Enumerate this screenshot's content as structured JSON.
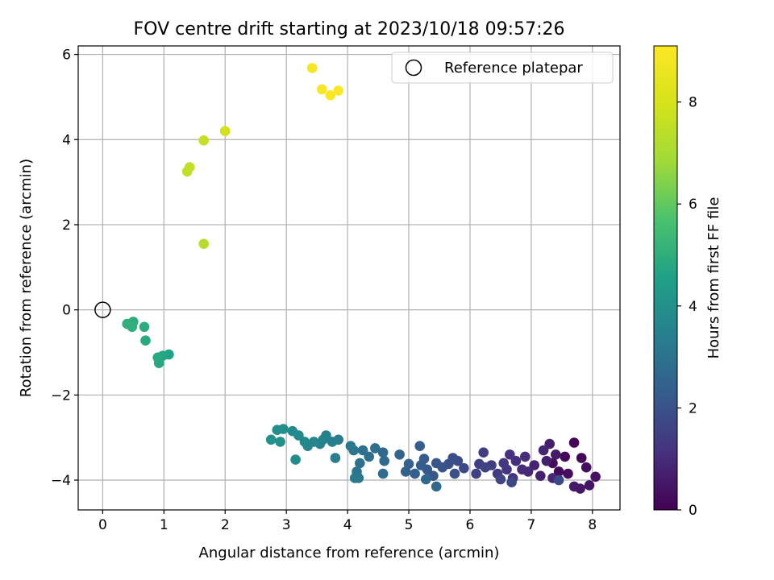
{
  "chart_data": {
    "type": "scatter",
    "title": "FOV centre drift starting at 2023/10/18 09:57:26",
    "xlabel": "Angular distance from reference (arcmin)",
    "ylabel": "Rotation from reference (arcmin)",
    "xlim": [
      -0.4,
      8.45
    ],
    "ylim": [
      -4.7,
      6.2
    ],
    "xticks": [
      0,
      1,
      2,
      3,
      4,
      5,
      6,
      7,
      8
    ],
    "yticks": [
      -4,
      -2,
      0,
      2,
      4,
      6
    ],
    "grid": true,
    "legend": {
      "position": "top-right",
      "entries": [
        "Reference platepar"
      ]
    },
    "reference_point": {
      "x": 0,
      "y": 0,
      "label": "Reference platepar"
    },
    "colorbar": {
      "label": "Hours from first FF file",
      "range": [
        0,
        9.1
      ],
      "ticks": [
        0,
        2,
        4,
        6,
        8
      ],
      "colormap": "viridis"
    },
    "points": [
      {
        "x": 7.7,
        "y": -3.12,
        "h": 0.05
      },
      {
        "x": 7.82,
        "y": -3.48,
        "h": 0.1
      },
      {
        "x": 7.55,
        "y": -3.45,
        "h": 0.15
      },
      {
        "x": 7.45,
        "y": -3.8,
        "h": 0.2
      },
      {
        "x": 7.35,
        "y": -3.6,
        "h": 0.25
      },
      {
        "x": 7.6,
        "y": -3.85,
        "h": 0.3
      },
      {
        "x": 7.9,
        "y": -3.7,
        "h": 0.35
      },
      {
        "x": 8.05,
        "y": -3.92,
        "h": 0.4
      },
      {
        "x": 7.95,
        "y": -4.12,
        "h": 0.45
      },
      {
        "x": 7.8,
        "y": -4.2,
        "h": 0.5
      },
      {
        "x": 7.7,
        "y": -4.15,
        "h": 0.55
      },
      {
        "x": 7.4,
        "y": -3.4,
        "h": 0.6
      },
      {
        "x": 7.3,
        "y": -3.15,
        "h": 0.65
      },
      {
        "x": 7.25,
        "y": -3.55,
        "h": 0.7
      },
      {
        "x": 7.15,
        "y": -3.9,
        "h": 0.75
      },
      {
        "x": 7.05,
        "y": -3.65,
        "h": 0.8
      },
      {
        "x": 7.2,
        "y": -3.3,
        "h": 0.85
      },
      {
        "x": 7.35,
        "y": -3.95,
        "h": 0.9
      },
      {
        "x": 6.95,
        "y": -3.8,
        "h": 0.95
      },
      {
        "x": 6.85,
        "y": -3.75,
        "h": 1.0
      },
      {
        "x": 6.9,
        "y": -3.45,
        "h": 1.05
      },
      {
        "x": 6.75,
        "y": -3.55,
        "h": 1.1
      },
      {
        "x": 6.65,
        "y": -3.4,
        "h": 1.15
      },
      {
        "x": 6.7,
        "y": -3.95,
        "h": 1.2
      },
      {
        "x": 6.6,
        "y": -3.75,
        "h": 1.25
      },
      {
        "x": 6.55,
        "y": -3.6,
        "h": 1.3
      },
      {
        "x": 6.45,
        "y": -3.85,
        "h": 1.35
      },
      {
        "x": 6.35,
        "y": -3.65,
        "h": 1.4
      },
      {
        "x": 6.22,
        "y": -3.35,
        "h": 1.45
      },
      {
        "x": 6.15,
        "y": -3.62,
        "h": 1.5
      },
      {
        "x": 6.1,
        "y": -3.85,
        "h": 1.55
      },
      {
        "x": 6.25,
        "y": -3.7,
        "h": 1.6
      },
      {
        "x": 6.5,
        "y": -3.98,
        "h": 1.65
      },
      {
        "x": 6.68,
        "y": -4.05,
        "h": 1.7
      },
      {
        "x": 7.45,
        "y": -4.0,
        "h": 1.75
      },
      {
        "x": 5.9,
        "y": -3.72,
        "h": 1.8
      },
      {
        "x": 5.8,
        "y": -3.55,
        "h": 1.85
      },
      {
        "x": 5.72,
        "y": -3.48,
        "h": 1.9
      },
      {
        "x": 5.65,
        "y": -3.62,
        "h": 1.95
      },
      {
        "x": 5.75,
        "y": -3.85,
        "h": 2.0
      },
      {
        "x": 5.55,
        "y": -3.7,
        "h": 2.05
      },
      {
        "x": 5.45,
        "y": -3.6,
        "h": 2.1
      },
      {
        "x": 5.4,
        "y": -3.9,
        "h": 2.15
      },
      {
        "x": 5.3,
        "y": -3.75,
        "h": 2.2
      },
      {
        "x": 5.25,
        "y": -3.5,
        "h": 2.25
      },
      {
        "x": 5.18,
        "y": -3.2,
        "h": 2.3
      },
      {
        "x": 5.2,
        "y": -3.65,
        "h": 2.35
      },
      {
        "x": 5.1,
        "y": -3.85,
        "h": 2.4
      },
      {
        "x": 5.0,
        "y": -3.62,
        "h": 2.45
      },
      {
        "x": 4.95,
        "y": -3.8,
        "h": 2.5
      },
      {
        "x": 4.85,
        "y": -3.4,
        "h": 2.55
      },
      {
        "x": 5.28,
        "y": -3.98,
        "h": 2.6
      },
      {
        "x": 5.45,
        "y": -4.15,
        "h": 2.65
      },
      {
        "x": 4.58,
        "y": -3.35,
        "h": 2.7
      },
      {
        "x": 4.6,
        "y": -3.55,
        "h": 2.75
      },
      {
        "x": 4.58,
        "y": -3.85,
        "h": 2.8
      },
      {
        "x": 4.45,
        "y": -3.25,
        "h": 2.85
      },
      {
        "x": 4.35,
        "y": -3.45,
        "h": 2.9
      },
      {
        "x": 4.25,
        "y": -3.3,
        "h": 2.95
      },
      {
        "x": 4.2,
        "y": -3.6,
        "h": 3.0
      },
      {
        "x": 4.15,
        "y": -3.8,
        "h": 3.05
      },
      {
        "x": 4.1,
        "y": -3.3,
        "h": 3.1
      },
      {
        "x": 4.05,
        "y": -3.2,
        "h": 3.15
      },
      {
        "x": 4.18,
        "y": -3.95,
        "h": 3.2
      },
      {
        "x": 4.12,
        "y": -3.95,
        "h": 3.25
      },
      {
        "x": 3.85,
        "y": -3.05,
        "h": 3.3
      },
      {
        "x": 3.8,
        "y": -3.48,
        "h": 3.35
      },
      {
        "x": 3.75,
        "y": -3.1,
        "h": 3.4
      },
      {
        "x": 3.65,
        "y": -2.95,
        "h": 3.45
      },
      {
        "x": 3.6,
        "y": -3.05,
        "h": 3.5
      },
      {
        "x": 3.55,
        "y": -3.15,
        "h": 3.55
      },
      {
        "x": 3.45,
        "y": -3.1,
        "h": 3.6
      },
      {
        "x": 3.35,
        "y": -3.2,
        "h": 3.65
      },
      {
        "x": 3.3,
        "y": -3.1,
        "h": 3.7
      },
      {
        "x": 3.2,
        "y": -2.95,
        "h": 3.75
      },
      {
        "x": 3.1,
        "y": -2.85,
        "h": 3.8
      },
      {
        "x": 3.15,
        "y": -3.52,
        "h": 3.85
      },
      {
        "x": 2.95,
        "y": -2.8,
        "h": 3.9
      },
      {
        "x": 2.85,
        "y": -2.82,
        "h": 3.95
      },
      {
        "x": 2.9,
        "y": -3.1,
        "h": 4.0
      },
      {
        "x": 2.75,
        "y": -3.05,
        "h": 4.05
      },
      {
        "x": 1.08,
        "y": -1.05,
        "h": 4.6
      },
      {
        "x": 0.98,
        "y": -1.08,
        "h": 4.7
      },
      {
        "x": 0.92,
        "y": -1.25,
        "h": 4.75
      },
      {
        "x": 0.9,
        "y": -1.12,
        "h": 4.8
      },
      {
        "x": 0.7,
        "y": -0.72,
        "h": 4.85
      },
      {
        "x": 0.68,
        "y": -0.4,
        "h": 4.9
      },
      {
        "x": 0.5,
        "y": -0.28,
        "h": 4.95
      },
      {
        "x": 0.48,
        "y": -0.4,
        "h": 5.0
      },
      {
        "x": 0.4,
        "y": -0.33,
        "h": 5.05
      },
      {
        "x": 1.65,
        "y": 1.55,
        "h": 7.3
      },
      {
        "x": 1.38,
        "y": 3.25,
        "h": 7.5
      },
      {
        "x": 1.42,
        "y": 3.35,
        "h": 7.55
      },
      {
        "x": 1.65,
        "y": 3.98,
        "h": 7.6
      },
      {
        "x": 2.0,
        "y": 4.2,
        "h": 7.9
      },
      {
        "x": 3.42,
        "y": 5.68,
        "h": 8.9
      },
      {
        "x": 3.58,
        "y": 5.18,
        "h": 8.95
      },
      {
        "x": 3.72,
        "y": 5.04,
        "h": 9.0
      },
      {
        "x": 3.85,
        "y": 5.15,
        "h": 9.05
      }
    ]
  }
}
